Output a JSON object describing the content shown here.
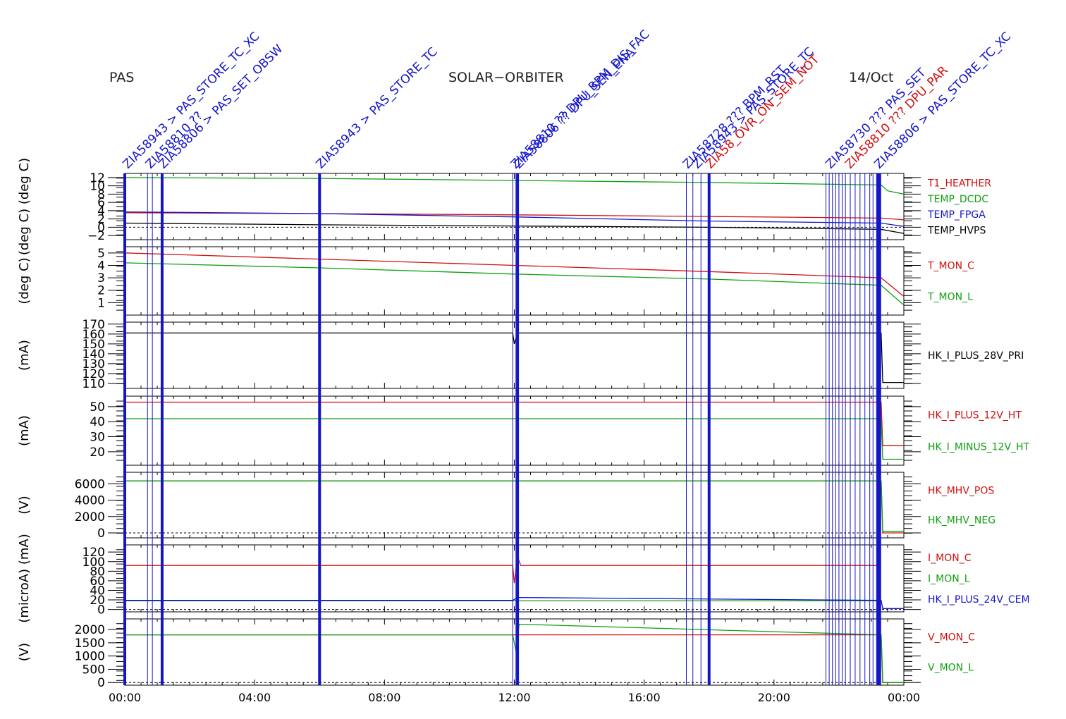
{
  "header": {
    "instrument": "PAS",
    "mission": "SOLAR−ORBITER",
    "date": "14/Oct"
  },
  "colors": {
    "red": "#d01010",
    "green": "#10a010",
    "blue": "#1515c8",
    "black": "#000000"
  },
  "x_ticks": [
    "00:00",
    "04:00",
    "08:00",
    "12:00",
    "16:00",
    "20:00",
    "00:00"
  ],
  "events": {
    "thick_hours": [
      0.0,
      1.15,
      6.0,
      12.1,
      18.0
    ],
    "thin_hours": [
      0.7,
      0.85,
      11.95,
      12.05,
      17.3,
      17.5,
      17.75,
      21.6,
      21.7,
      21.8,
      21.9,
      22.0,
      22.1,
      22.2,
      22.35,
      22.5,
      22.65,
      22.8,
      22.95,
      23.05
    ],
    "dense_band_hours": [
      23.15,
      23.3
    ],
    "labels": [
      {
        "hour": 0.05,
        "text": "ZIA58943 > PAS_STORE_TC_XC",
        "color": "blue"
      },
      {
        "hour": 0.75,
        "text": "ZIA58810 ??",
        "color": "blue"
      },
      {
        "hour": 1.15,
        "text": "ZIA58806 > PAS_SET_OBSW",
        "color": "blue"
      },
      {
        "hour": 6.0,
        "text": "ZIA58943 > PAS_STORE_TC",
        "color": "blue"
      },
      {
        "hour": 12.0,
        "text": "ZIA58810 ?? DPU_BPM_DIS_FAC",
        "color": "blue"
      },
      {
        "hour": 12.1,
        "text": "ZIA58806 ?? DPU_SEN_ENA",
        "color": "blue"
      },
      {
        "hour": 17.3,
        "text": "ZIA58728 ??? BPM_RST",
        "color": "blue"
      },
      {
        "hour": 17.6,
        "text": "ZIA58943 > PAS_STORE_TC",
        "color": "blue"
      },
      {
        "hour": 18.0,
        "text": "ZIA58_OVR_ON_SEM_NOT",
        "color": "red"
      },
      {
        "hour": 21.7,
        "text": "ZIA58730 ??? PAS_SET",
        "color": "blue"
      },
      {
        "hour": 22.3,
        "text": "ZIA58810 ??? DPU_PAR",
        "color": "red"
      },
      {
        "hour": 23.2,
        "text": "ZIA58806 > PAS_STORE_TC_XC",
        "color": "blue"
      }
    ]
  },
  "chart_data": [
    {
      "type": "line",
      "panel": 1,
      "ylabel": "(deg C) (deg C)",
      "yticks": [
        "12",
        "10",
        "8",
        "6",
        "4",
        "2",
        "0",
        "−2"
      ],
      "ylim": [
        -3,
        13
      ],
      "dashed_zero": true,
      "series": [
        {
          "name": "T1_HEATHER",
          "color": "red",
          "x": [
            0,
            6,
            12,
            18,
            23.3,
            24
          ],
          "y": [
            3.5,
            3.3,
            3.0,
            2.6,
            2.2,
            1.8
          ]
        },
        {
          "name": "TEMP_DCDC",
          "color": "green",
          "x": [
            0,
            6,
            12,
            18,
            23.3,
            23.5,
            24
          ],
          "y": [
            12.0,
            11.8,
            11.3,
            10.8,
            10.2,
            8.8,
            8.0
          ]
        },
        {
          "name": "TEMP_FPGA",
          "color": "blue",
          "x": [
            0,
            6,
            12,
            18,
            23.3,
            24
          ],
          "y": [
            3.7,
            3.3,
            2.5,
            1.5,
            1.0,
            0.2
          ]
        },
        {
          "name": "TEMP_HVPS",
          "color": "black",
          "x": [
            0,
            6,
            12,
            18,
            23.3,
            24
          ],
          "y": [
            1.0,
            0.6,
            0.3,
            0.0,
            -0.5,
            -1.5
          ]
        }
      ]
    },
    {
      "type": "line",
      "panel": 2,
      "ylabel": "(deg C)",
      "yticks": [
        "5",
        "4",
        "3",
        "2",
        "1"
      ],
      "ylim": [
        0,
        5.5
      ],
      "dashed_zero": false,
      "series": [
        {
          "name": "T_MON_C",
          "color": "red",
          "x": [
            0,
            6,
            12,
            18,
            23.3,
            24
          ],
          "y": [
            5.0,
            4.5,
            4.0,
            3.5,
            3.0,
            1.5
          ]
        },
        {
          "name": "T_MON_L",
          "color": "green",
          "x": [
            0,
            6,
            12,
            18,
            23.3,
            24
          ],
          "y": [
            4.2,
            3.8,
            3.3,
            2.9,
            2.4,
            0.8
          ]
        }
      ]
    },
    {
      "type": "line",
      "panel": 3,
      "ylabel": "(mA)",
      "yticks": [
        "170",
        "160",
        "150",
        "140",
        "130",
        "120",
        "110"
      ],
      "ylim": [
        105,
        172
      ],
      "dashed_zero": false,
      "series": [
        {
          "name": "HK_I_PLUS_28V_PRI",
          "color": "black",
          "x": [
            0,
            11.95,
            12.0,
            12.1,
            12.2,
            23.3,
            23.35,
            24
          ],
          "y": [
            161,
            161,
            150,
            161,
            161,
            161,
            111,
            111
          ]
        }
      ]
    },
    {
      "type": "line",
      "panel": 4,
      "ylabel": "(mA)",
      "yticks": [
        "50",
        "40",
        "30",
        "20"
      ],
      "ylim": [
        11,
        57
      ],
      "dashed_zero": false,
      "series": [
        {
          "name": "HK_I_PLUS_12V_HT",
          "color": "red",
          "x": [
            0,
            23.3,
            23.35,
            24
          ],
          "y": [
            53,
            53,
            24,
            24
          ]
        },
        {
          "name": "HK_I_MINUS_12V_HT",
          "color": "green",
          "x": [
            0,
            23.3,
            23.35,
            24
          ],
          "y": [
            42,
            42,
            15,
            15
          ]
        }
      ]
    },
    {
      "type": "line",
      "panel": 5,
      "ylabel": "(V)",
      "yticks": [
        "6000",
        "4000",
        "2000",
        "0"
      ],
      "ylim": [
        -600,
        7400
      ],
      "dashed_zero": true,
      "series": [
        {
          "name": "HK_MHV_POS",
          "color": "red",
          "x": [
            0,
            23.3,
            23.35,
            24
          ],
          "y": [
            6350,
            6350,
            0,
            0
          ]
        },
        {
          "name": "HK_MHV_NEG",
          "color": "green",
          "x": [
            0,
            23.3,
            23.35,
            24
          ],
          "y": [
            6350,
            6350,
            200,
            200
          ]
        }
      ]
    },
    {
      "type": "line",
      "panel": 6,
      "ylabel": "(microA) (mA)",
      "yticks": [
        "120",
        "100",
        "80",
        "60",
        "40",
        "20",
        "0"
      ],
      "ylim": [
        -5,
        135
      ],
      "dashed_zero": true,
      "series": [
        {
          "name": "I_MON_C",
          "color": "red",
          "x": [
            0,
            11.95,
            12.0,
            12.1,
            12.2,
            23.3
          ],
          "y": [
            92,
            92,
            55,
            110,
            92,
            92
          ]
        },
        {
          "name": "I_MON_L",
          "color": "green",
          "x": [
            0,
            23.3
          ],
          "y": [
            18,
            18
          ]
        },
        {
          "name": "HK_I_PLUS_24V_CEM",
          "color": "blue",
          "x": [
            0,
            11.95,
            12.1,
            23.3,
            23.35,
            24
          ],
          "y": [
            19,
            19,
            25,
            19,
            2,
            2
          ]
        }
      ]
    },
    {
      "type": "line",
      "panel": 7,
      "ylabel": "(V)",
      "yticks": [
        "2000",
        "1500",
        "1000",
        "500",
        "0"
      ],
      "ylim": [
        -100,
        2400
      ],
      "dashed_zero": true,
      "series": [
        {
          "name": "V_MON_C",
          "color": "red",
          "x": [
            0,
            23.3,
            23.35,
            24
          ],
          "y": [
            1800,
            1800,
            0,
            0
          ]
        },
        {
          "name": "V_MON_L",
          "color": "green",
          "x": [
            0,
            11.95,
            12.05,
            12.15,
            23.3,
            23.35,
            24
          ],
          "y": [
            1800,
            1800,
            1200,
            2200,
            1800,
            0,
            0
          ]
        }
      ]
    }
  ]
}
